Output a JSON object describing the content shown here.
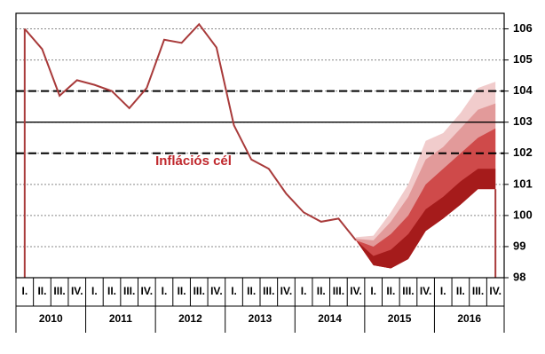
{
  "chart_data": {
    "type": "fan",
    "categories": [
      "I.",
      "II.",
      "III.",
      "IV.",
      "I.",
      "II.",
      "III.",
      "IV.",
      "I.",
      "II.",
      "III.",
      "IV.",
      "I.",
      "II.",
      "III.",
      "IV.",
      "I.",
      "II.",
      "III.",
      "IV.",
      "I.",
      "II.",
      "III.",
      "IV.",
      "I.",
      "II.",
      "III.",
      "IV."
    ],
    "years": [
      "2010",
      "2011",
      "2012",
      "2013",
      "2014",
      "2015",
      "2016"
    ],
    "values": [
      106.0,
      105.35,
      103.85,
      104.35,
      104.2,
      104.0,
      103.45,
      104.1,
      105.65,
      105.55,
      106.15,
      105.4,
      102.9,
      101.8,
      101.5,
      100.7,
      100.1,
      99.8,
      99.9,
      99.2,
      null,
      null,
      null,
      null,
      null,
      null,
      null,
      null
    ],
    "color": "#a83a3a",
    "fan": [
      {
        "color": "#f1cccc",
        "upper": [
          99.3,
          99.35,
          100.1,
          101.0,
          102.4,
          102.65,
          103.3,
          104.1,
          104.3
        ],
        "lower": [
          99.2,
          98.4,
          98.3,
          98.6,
          99.5,
          99.9,
          100.35,
          100.85,
          100.85
        ]
      },
      {
        "color": "#e29a9a",
        "upper": [
          99.25,
          99.2,
          99.8,
          100.6,
          101.8,
          102.2,
          102.8,
          103.4,
          103.6
        ],
        "lower": [
          99.2,
          98.4,
          98.3,
          98.6,
          99.5,
          99.9,
          100.35,
          100.85,
          100.85
        ]
      },
      {
        "color": "#cf4a4a",
        "upper": [
          99.2,
          99.0,
          99.4,
          100.0,
          101.0,
          101.5,
          102.0,
          102.5,
          102.8
        ],
        "lower": [
          99.2,
          98.4,
          98.3,
          98.6,
          99.5,
          99.9,
          100.35,
          100.85,
          100.85
        ]
      },
      {
        "color": "#a51b1b",
        "upper": [
          99.2,
          98.7,
          98.9,
          99.4,
          100.2,
          100.6,
          101.1,
          101.5,
          101.5
        ],
        "lower": [
          99.2,
          98.4,
          98.3,
          98.6,
          99.5,
          99.9,
          100.35,
          100.85,
          100.85
        ]
      }
    ],
    "fan_start": 19,
    "reference_lines": [
      {
        "value": 104,
        "style": "dashed"
      },
      {
        "value": 103,
        "style": "solid"
      },
      {
        "value": 102,
        "style": "dashed"
      }
    ],
    "annotation": "Inflációs cél",
    "ylim": [
      98,
      106.5
    ],
    "yticks": [
      98,
      99,
      100,
      101,
      102,
      103,
      104,
      105,
      106
    ],
    "grid": true
  }
}
